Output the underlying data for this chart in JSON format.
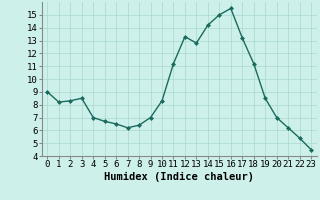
{
  "x": [
    0,
    1,
    2,
    3,
    4,
    5,
    6,
    7,
    8,
    9,
    10,
    11,
    12,
    13,
    14,
    15,
    16,
    17,
    18,
    19,
    20,
    21,
    22,
    23
  ],
  "y": [
    9.0,
    8.2,
    8.3,
    8.5,
    7.0,
    6.7,
    6.5,
    6.2,
    6.4,
    7.0,
    8.3,
    11.2,
    13.3,
    12.8,
    14.2,
    15.0,
    15.5,
    13.2,
    11.2,
    8.5,
    7.0,
    6.2,
    5.4,
    4.5
  ],
  "line_color": "#1a6b5e",
  "marker": "D",
  "marker_size": 2.0,
  "bg_color": "#cef0eb",
  "grid_color": "#aad8d2",
  "xlabel": "Humidex (Indice chaleur)",
  "xlim": [
    -0.5,
    23.5
  ],
  "ylim": [
    4,
    16
  ],
  "yticks": [
    4,
    5,
    6,
    7,
    8,
    9,
    10,
    11,
    12,
    13,
    14,
    15
  ],
  "xticks": [
    0,
    1,
    2,
    3,
    4,
    5,
    6,
    7,
    8,
    9,
    10,
    11,
    12,
    13,
    14,
    15,
    16,
    17,
    18,
    19,
    20,
    21,
    22,
    23
  ],
  "xlabel_fontsize": 7.5,
  "tick_fontsize": 6.5,
  "line_width": 1.0
}
